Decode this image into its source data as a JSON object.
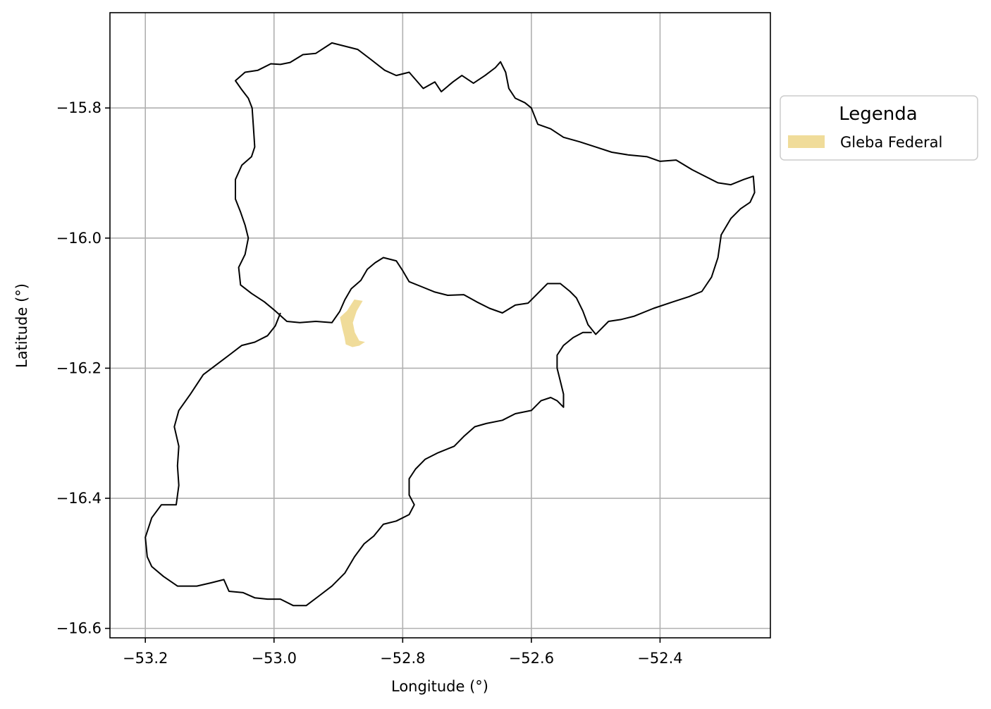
{
  "chart_data": {
    "type": "map",
    "xlabel": "Longitude (°)",
    "ylabel": "Latitude (°)",
    "xlim": [
      -53.255,
      -52.2285
    ],
    "ylim": [
      -16.6145,
      -15.6535
    ],
    "x_ticks": [
      -53.2,
      -53.0,
      -52.8,
      -52.6,
      -52.4
    ],
    "x_tick_labels": [
      "−53.2",
      "−53.0",
      "−52.8",
      "−52.6",
      "−52.4"
    ],
    "y_ticks": [
      -15.8,
      -16.0,
      -16.2,
      -16.4,
      -16.6
    ],
    "y_tick_labels": [
      "−15.8",
      "−16.0",
      "−16.2",
      "−16.4",
      "−16.6"
    ],
    "grid": true,
    "legend": {
      "title": "Legenda",
      "placement": "outside-right-top",
      "entries": [
        {
          "label": "Gleba Federal",
          "color": "#f0dc9a"
        }
      ]
    },
    "outline_color": "#000000",
    "boundary_outline": [
      [
        -52.648,
        -15.729
      ],
      [
        -52.656,
        -15.738
      ],
      [
        -52.672,
        -15.75
      ],
      [
        -52.69,
        -15.762
      ],
      [
        -52.708,
        -15.75
      ],
      [
        -52.722,
        -15.76
      ],
      [
        -52.74,
        -15.775
      ],
      [
        -52.75,
        -15.76
      ],
      [
        -52.768,
        -15.77
      ],
      [
        -52.79,
        -15.745
      ],
      [
        -52.81,
        -15.75
      ],
      [
        -52.828,
        -15.742
      ],
      [
        -52.85,
        -15.725
      ],
      [
        -52.87,
        -15.71
      ],
      [
        -52.89,
        -15.705
      ],
      [
        -52.91,
        -15.7
      ],
      [
        -52.935,
        -15.716
      ],
      [
        -52.955,
        -15.718
      ],
      [
        -52.975,
        -15.73
      ],
      [
        -52.99,
        -15.733
      ],
      [
        -53.005,
        -15.732
      ],
      [
        -53.025,
        -15.742
      ],
      [
        -53.045,
        -15.745
      ],
      [
        -53.06,
        -15.758
      ],
      [
        -53.05,
        -15.772
      ],
      [
        -53.04,
        -15.785
      ],
      [
        -53.034,
        -15.8
      ],
      [
        -53.032,
        -15.83
      ],
      [
        -53.03,
        -15.86
      ],
      [
        -53.035,
        -15.875
      ],
      [
        -53.05,
        -15.888
      ],
      [
        -53.06,
        -15.91
      ],
      [
        -53.06,
        -15.94
      ],
      [
        -53.052,
        -15.96
      ],
      [
        -53.045,
        -15.98
      ],
      [
        -53.04,
        -16.0
      ],
      [
        -53.045,
        -16.025
      ],
      [
        -53.055,
        -16.045
      ],
      [
        -53.052,
        -16.072
      ],
      [
        -53.035,
        -16.085
      ],
      [
        -53.015,
        -16.098
      ],
      [
        -52.998,
        -16.112
      ],
      [
        -52.98,
        -16.128
      ],
      [
        -52.96,
        -16.13
      ],
      [
        -52.935,
        -16.128
      ],
      [
        -52.91,
        -16.13
      ],
      [
        -52.898,
        -16.113
      ],
      [
        -52.89,
        -16.095
      ],
      [
        -52.88,
        -16.078
      ],
      [
        -52.865,
        -16.065
      ],
      [
        -52.855,
        -16.048
      ],
      [
        -52.843,
        -16.038
      ],
      [
        -52.83,
        -16.03
      ],
      [
        -52.81,
        -16.035
      ],
      [
        -52.8,
        -16.05
      ],
      [
        -52.79,
        -16.067
      ],
      [
        -52.77,
        -16.075
      ],
      [
        -52.75,
        -16.083
      ],
      [
        -52.73,
        -16.088
      ],
      [
        -52.705,
        -16.087
      ],
      [
        -52.685,
        -16.098
      ],
      [
        -52.665,
        -16.108
      ],
      [
        -52.645,
        -16.115
      ],
      [
        -52.625,
        -16.103
      ],
      [
        -52.605,
        -16.1
      ],
      [
        -52.59,
        -16.085
      ],
      [
        -52.575,
        -16.07
      ],
      [
        -52.555,
        -16.07
      ],
      [
        -52.54,
        -16.082
      ],
      [
        -52.53,
        -16.092
      ],
      [
        -52.52,
        -16.112
      ],
      [
        -52.512,
        -16.133
      ],
      [
        -52.5,
        -16.148
      ],
      [
        -52.48,
        -16.128
      ],
      [
        -52.46,
        -16.125
      ],
      [
        -52.44,
        -16.12
      ],
      [
        -52.41,
        -16.108
      ],
      [
        -52.38,
        -16.098
      ],
      [
        -52.355,
        -16.09
      ],
      [
        -52.335,
        -16.082
      ],
      [
        -52.32,
        -16.06
      ],
      [
        -52.31,
        -16.03
      ],
      [
        -52.305,
        -15.995
      ],
      [
        -52.29,
        -15.97
      ],
      [
        -52.275,
        -15.955
      ],
      [
        -52.26,
        -15.945
      ],
      [
        -52.253,
        -15.93
      ],
      [
        -52.255,
        -15.905
      ],
      [
        -52.27,
        -15.91
      ],
      [
        -52.29,
        -15.918
      ],
      [
        -52.31,
        -15.915
      ],
      [
        -52.33,
        -15.905
      ],
      [
        -52.35,
        -15.895
      ],
      [
        -52.375,
        -15.88
      ],
      [
        -52.4,
        -15.882
      ],
      [
        -52.42,
        -15.875
      ],
      [
        -52.45,
        -15.872
      ],
      [
        -52.475,
        -15.868
      ],
      [
        -52.5,
        -15.86
      ],
      [
        -52.525,
        -15.852
      ],
      [
        -52.55,
        -15.845
      ],
      [
        -52.57,
        -15.832
      ],
      [
        -52.59,
        -15.825
      ],
      [
        -52.6,
        -15.8
      ],
      [
        -52.61,
        -15.792
      ],
      [
        -52.625,
        -15.785
      ],
      [
        -52.635,
        -15.77
      ],
      [
        -52.64,
        -15.745
      ]
    ],
    "lower_outline": [
      [
        -52.99,
        -16.115
      ],
      [
        -52.998,
        -16.135
      ],
      [
        -53.01,
        -16.15
      ],
      [
        -53.03,
        -16.16
      ],
      [
        -53.05,
        -16.165
      ],
      [
        -53.07,
        -16.18
      ],
      [
        -53.09,
        -16.195
      ],
      [
        -53.11,
        -16.21
      ],
      [
        -53.13,
        -16.24
      ],
      [
        -53.148,
        -16.265
      ],
      [
        -53.155,
        -16.29
      ],
      [
        -53.148,
        -16.32
      ],
      [
        -53.15,
        -16.35
      ],
      [
        -53.148,
        -16.38
      ],
      [
        -53.152,
        -16.41
      ],
      [
        -53.175,
        -16.41
      ],
      [
        -53.19,
        -16.43
      ],
      [
        -53.2,
        -16.46
      ],
      [
        -53.197,
        -16.49
      ],
      [
        -53.19,
        -16.505
      ],
      [
        -53.172,
        -16.52
      ],
      [
        -53.15,
        -16.535
      ],
      [
        -53.12,
        -16.535
      ],
      [
        -53.098,
        -16.53
      ],
      [
        -53.078,
        -16.525
      ],
      [
        -53.07,
        -16.543
      ],
      [
        -53.048,
        -16.545
      ],
      [
        -53.03,
        -16.553
      ],
      [
        -53.01,
        -16.555
      ],
      [
        -52.99,
        -16.555
      ],
      [
        -52.97,
        -16.565
      ],
      [
        -52.95,
        -16.565
      ],
      [
        -52.93,
        -16.55
      ],
      [
        -52.91,
        -16.535
      ],
      [
        -52.89,
        -16.515
      ],
      [
        -52.875,
        -16.49
      ],
      [
        -52.86,
        -16.47
      ],
      [
        -52.845,
        -16.458
      ],
      [
        -52.83,
        -16.44
      ],
      [
        -52.81,
        -16.435
      ],
      [
        -52.79,
        -16.425
      ],
      [
        -52.782,
        -16.41
      ],
      [
        -52.79,
        -16.395
      ],
      [
        -52.79,
        -16.37
      ],
      [
        -52.78,
        -16.355
      ],
      [
        -52.765,
        -16.34
      ],
      [
        -52.745,
        -16.33
      ],
      [
        -52.72,
        -16.32
      ],
      [
        -52.705,
        -16.305
      ],
      [
        -52.688,
        -16.29
      ],
      [
        -52.67,
        -16.285
      ],
      [
        -52.645,
        -16.28
      ],
      [
        -52.625,
        -16.27
      ],
      [
        -52.6,
        -16.265
      ],
      [
        -52.585,
        -16.25
      ],
      [
        -52.57,
        -16.245
      ],
      [
        -52.56,
        -16.25
      ],
      [
        -52.55,
        -16.26
      ],
      [
        -52.55,
        -16.24
      ],
      [
        -52.555,
        -16.22
      ],
      [
        -52.56,
        -16.2
      ],
      [
        -52.56,
        -16.18
      ],
      [
        -52.55,
        -16.165
      ],
      [
        -52.535,
        -16.153
      ],
      [
        -52.52,
        -16.145
      ],
      [
        -52.506,
        -16.145
      ]
    ],
    "gleba_polygon": [
      [
        -52.875,
        -16.095
      ],
      [
        -52.863,
        -16.097
      ],
      [
        -52.872,
        -16.112
      ],
      [
        -52.878,
        -16.13
      ],
      [
        -52.875,
        -16.145
      ],
      [
        -52.868,
        -16.158
      ],
      [
        -52.86,
        -16.16
      ],
      [
        -52.868,
        -16.165
      ],
      [
        -52.878,
        -16.167
      ],
      [
        -52.888,
        -16.163
      ],
      [
        -52.89,
        -16.152
      ],
      [
        -52.893,
        -16.14
      ],
      [
        -52.897,
        -16.122
      ],
      [
        -52.886,
        -16.112
      ]
    ]
  }
}
